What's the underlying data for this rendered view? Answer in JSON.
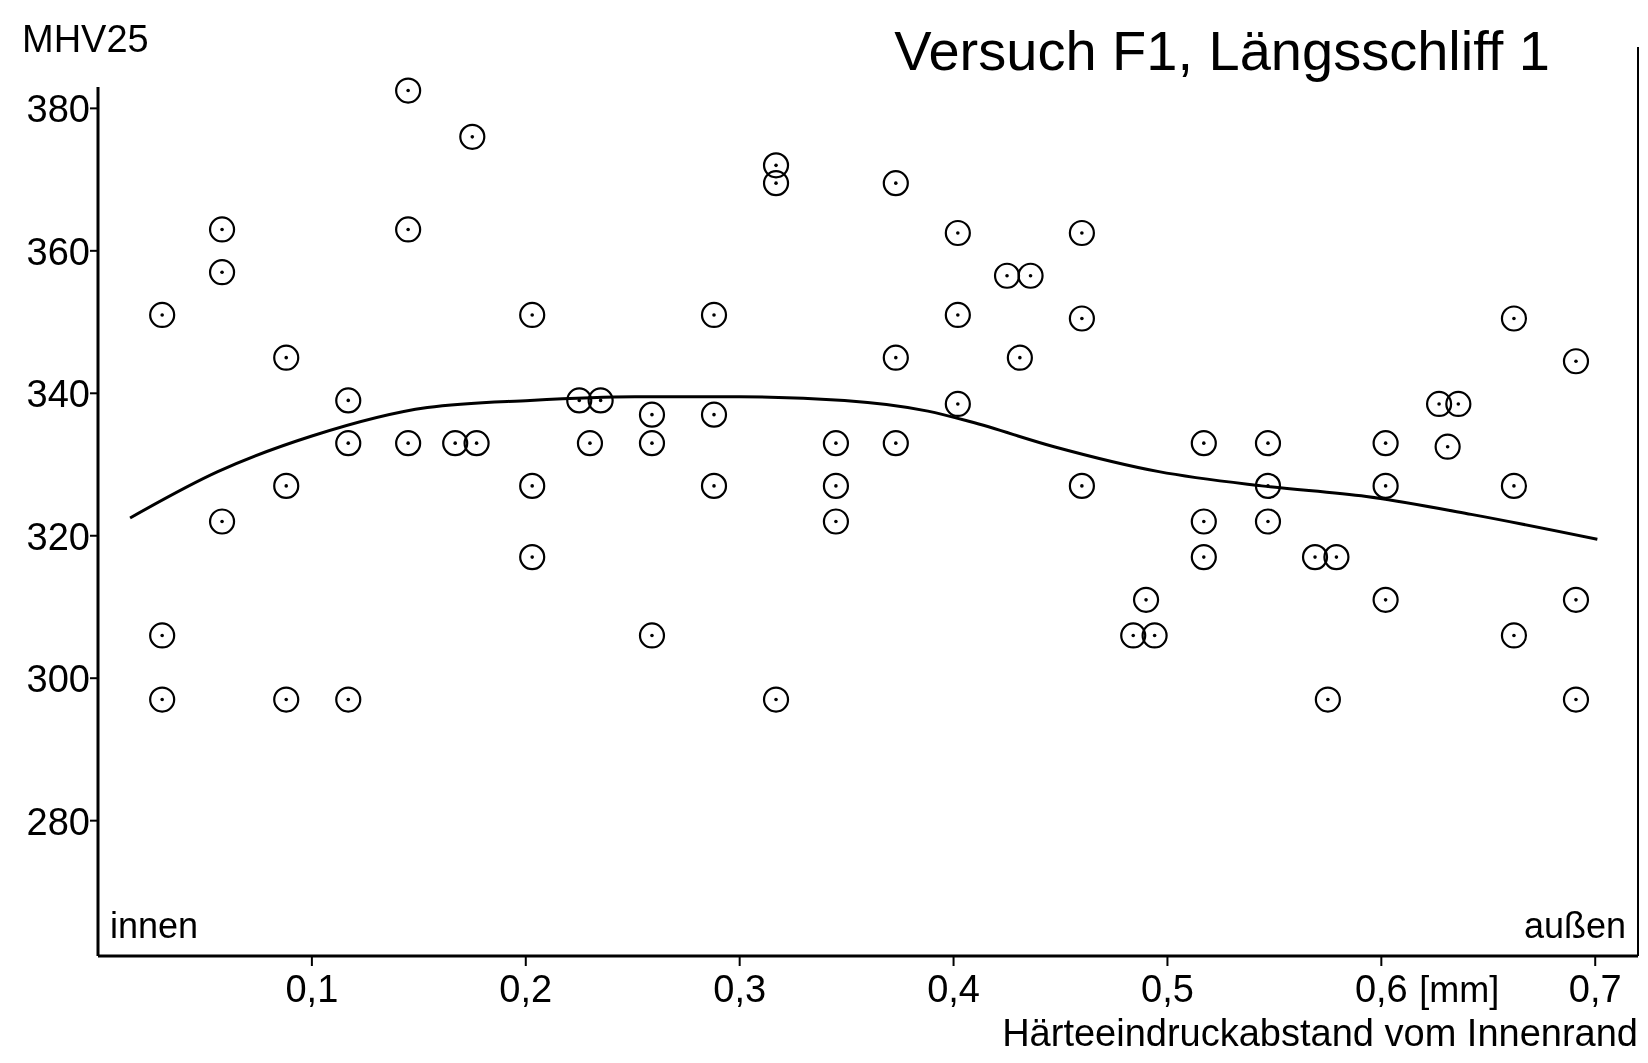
{
  "chart_data": {
    "type": "scatter",
    "title": "Versuch F1, Längsschliff 1",
    "xlabel": "Härteeindruckabstand vom Innenrand",
    "ylabel": "MHV25",
    "annotations": [
      "innen",
      "außen",
      "[mm]"
    ],
    "xlim": [
      0,
      0.72
    ],
    "ylim": [
      261,
      383
    ],
    "xticks": [
      {
        "value": 0.1,
        "label": "0,1"
      },
      {
        "value": 0.2,
        "label": "0,2"
      },
      {
        "value": 0.3,
        "label": "0,3"
      },
      {
        "value": 0.4,
        "label": "0,4"
      },
      {
        "value": 0.5,
        "label": "0,5"
      },
      {
        "value": 0.6,
        "label": "0,6"
      },
      {
        "value": 0.7,
        "label": "0,7"
      }
    ],
    "yticks": [
      280,
      300,
      320,
      340,
      360,
      380
    ],
    "series": [
      {
        "marker": "circle",
        "color": "#000000",
        "x": [
          0.03,
          0.03,
          0.03,
          0.058,
          0.058,
          0.058,
          0.088,
          0.088,
          0.088,
          0.117,
          0.117,
          0.117,
          0.145,
          0.145,
          0.145,
          0.167,
          0.177,
          0.175,
          0.203,
          0.203,
          0.203,
          0.225,
          0.235,
          0.23,
          0.259,
          0.259,
          0.259,
          0.288,
          0.288,
          0.288,
          0.317,
          0.317,
          0.317,
          0.345,
          0.345,
          0.345,
          0.373,
          0.373,
          0.373,
          0.402,
          0.402,
          0.402,
          0.425,
          0.436,
          0.431,
          0.46,
          0.46,
          0.46,
          0.484,
          0.494,
          0.49,
          0.517,
          0.517,
          0.517,
          0.547,
          0.547,
          0.547,
          0.569,
          0.579,
          0.575,
          0.602,
          0.602,
          0.602,
          0.627,
          0.636,
          0.631,
          0.662,
          0.662,
          0.662,
          0.691,
          0.691,
          0.691
        ],
        "values": [
          351,
          306,
          297,
          363,
          357,
          322,
          345,
          327,
          297,
          339,
          333,
          297,
          382.5,
          363,
          333,
          333,
          333,
          376,
          351,
          327,
          317,
          339,
          339,
          333,
          337,
          333,
          306,
          351,
          337,
          327,
          372,
          369.5,
          297,
          333,
          327,
          322,
          369.5,
          345,
          333,
          362.5,
          351,
          338.5,
          356.5,
          356.5,
          345,
          362.5,
          350.5,
          327,
          306,
          306,
          311,
          333,
          322,
          317,
          333,
          327,
          322,
          317,
          317,
          297,
          333,
          327,
          311,
          338.5,
          338.5,
          332.5,
          350.5,
          327,
          306,
          344.5,
          311,
          297
        ]
      },
      {
        "type": "line",
        "color": "#000000",
        "x": [
          0.015,
          0.056,
          0.1,
          0.154,
          0.202,
          0.251,
          0.3,
          0.349,
          0.388,
          0.408,
          0.447,
          0.496,
          0.544,
          0.593,
          0.642,
          0.701
        ],
        "values": [
          322.5,
          329,
          334,
          338,
          339,
          339.5,
          339.5,
          339,
          337.5,
          336,
          332.5,
          329,
          327,
          325.5,
          323,
          319.5
        ]
      }
    ]
  }
}
